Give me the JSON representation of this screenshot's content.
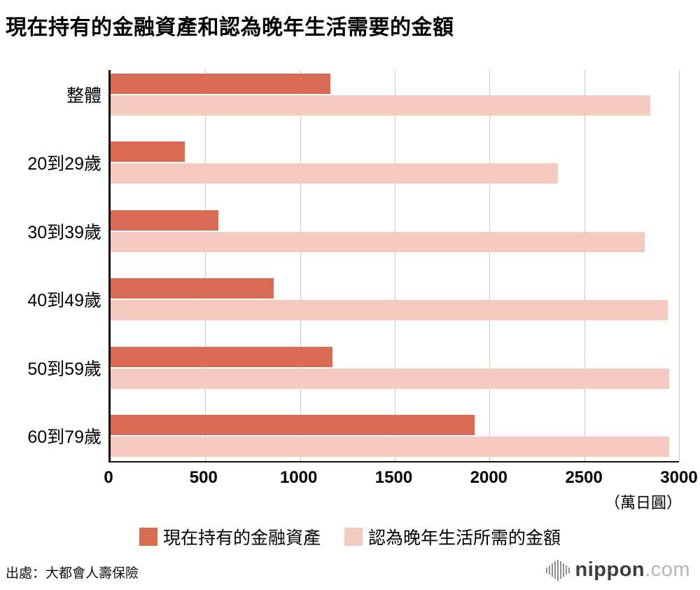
{
  "title": "現在持有的金融資產和認為晚年生活需要的金額",
  "chart_data": {
    "type": "bar",
    "orientation": "horizontal",
    "title": "現在持有的金融資產和認為晚年生活需要的金額",
    "categories": [
      "整體",
      "20到29歲",
      "30到39歲",
      "40到49歲",
      "50到59歲",
      "60到79歲"
    ],
    "series": [
      {
        "name": "現在持有的金融資產",
        "color": "#d96b52",
        "values": [
          1160,
          390,
          570,
          860,
          1170,
          1920
        ]
      },
      {
        "name": "認為晚年生活所需的金額",
        "color": "#f4c9c0",
        "values": [
          2850,
          2360,
          2820,
          2940,
          2950,
          2950
        ]
      }
    ],
    "xlim": [
      0,
      3000
    ],
    "xticks": [
      "0",
      "500",
      "1000",
      "1500",
      "2000",
      "2500",
      "3000"
    ],
    "unit_label": "（萬日圓）",
    "grid": true,
    "legend_position": "bottom"
  },
  "footer": {
    "source": "出處：大都會人壽保險",
    "logo_name": "nippon",
    "logo_tld": ".com"
  }
}
